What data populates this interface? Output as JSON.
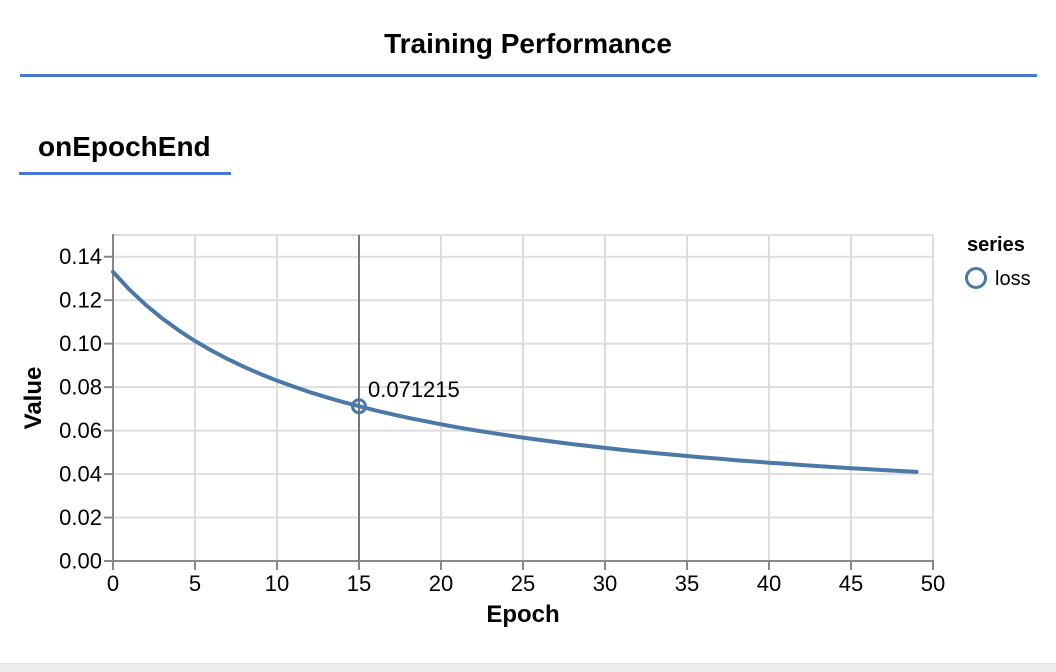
{
  "page": {
    "title": "Training Performance",
    "section_heading": "onEpochEnd",
    "accent_rule_color": "#4478d4"
  },
  "chart_data": {
    "type": "line",
    "xlabel": "Epoch",
    "ylabel": "Value",
    "xlim": [
      0,
      50
    ],
    "ylim": [
      0,
      0.15
    ],
    "grid": true,
    "legend_position": "right",
    "legend_title": "series",
    "x_ticks": [
      0,
      5,
      10,
      15,
      20,
      25,
      30,
      35,
      40,
      45,
      50
    ],
    "x_tick_labels": [
      "0",
      "5",
      "10",
      "15",
      "20",
      "25",
      "30",
      "35",
      "40",
      "45",
      "50"
    ],
    "y_ticks": [
      0.0,
      0.02,
      0.04,
      0.06,
      0.08,
      0.1,
      0.12,
      0.14
    ],
    "y_tick_labels": [
      "0.00",
      "0.02",
      "0.04",
      "0.06",
      "0.08",
      "0.10",
      "0.12",
      "0.14"
    ],
    "series": [
      {
        "name": "loss",
        "color": "#4c78a8",
        "x_start": 0,
        "x_step": 1,
        "values": [
          0.133001,
          0.124895,
          0.117833,
          0.111632,
          0.106141,
          0.101244,
          0.096851,
          0.092886,
          0.089291,
          0.086016,
          0.08302,
          0.080269,
          0.077734,
          0.07539,
          0.073217,
          0.071215,
          0.069314,
          0.067554,
          0.065907,
          0.06436,
          0.062906,
          0.061537,
          0.060244,
          0.059023,
          0.057867,
          0.056771,
          0.05573,
          0.054741,
          0.053799,
          0.052903,
          0.052047,
          0.05123,
          0.050448,
          0.0497,
          0.048984,
          0.048297,
          0.047639,
          0.047006,
          0.046397,
          0.045813,
          0.045249,
          0.044707,
          0.044184,
          0.04368,
          0.043193,
          0.042722,
          0.042268,
          0.041829,
          0.041404,
          0.040992
        ]
      }
    ],
    "hover": {
      "epoch": 15,
      "value": 0.071215,
      "label": "0.071215"
    },
    "colors": {
      "line": "#4c78a8",
      "grid": "#dddddd",
      "axis": "#888888",
      "hover_rule": "#767676",
      "text": "#000000"
    }
  }
}
